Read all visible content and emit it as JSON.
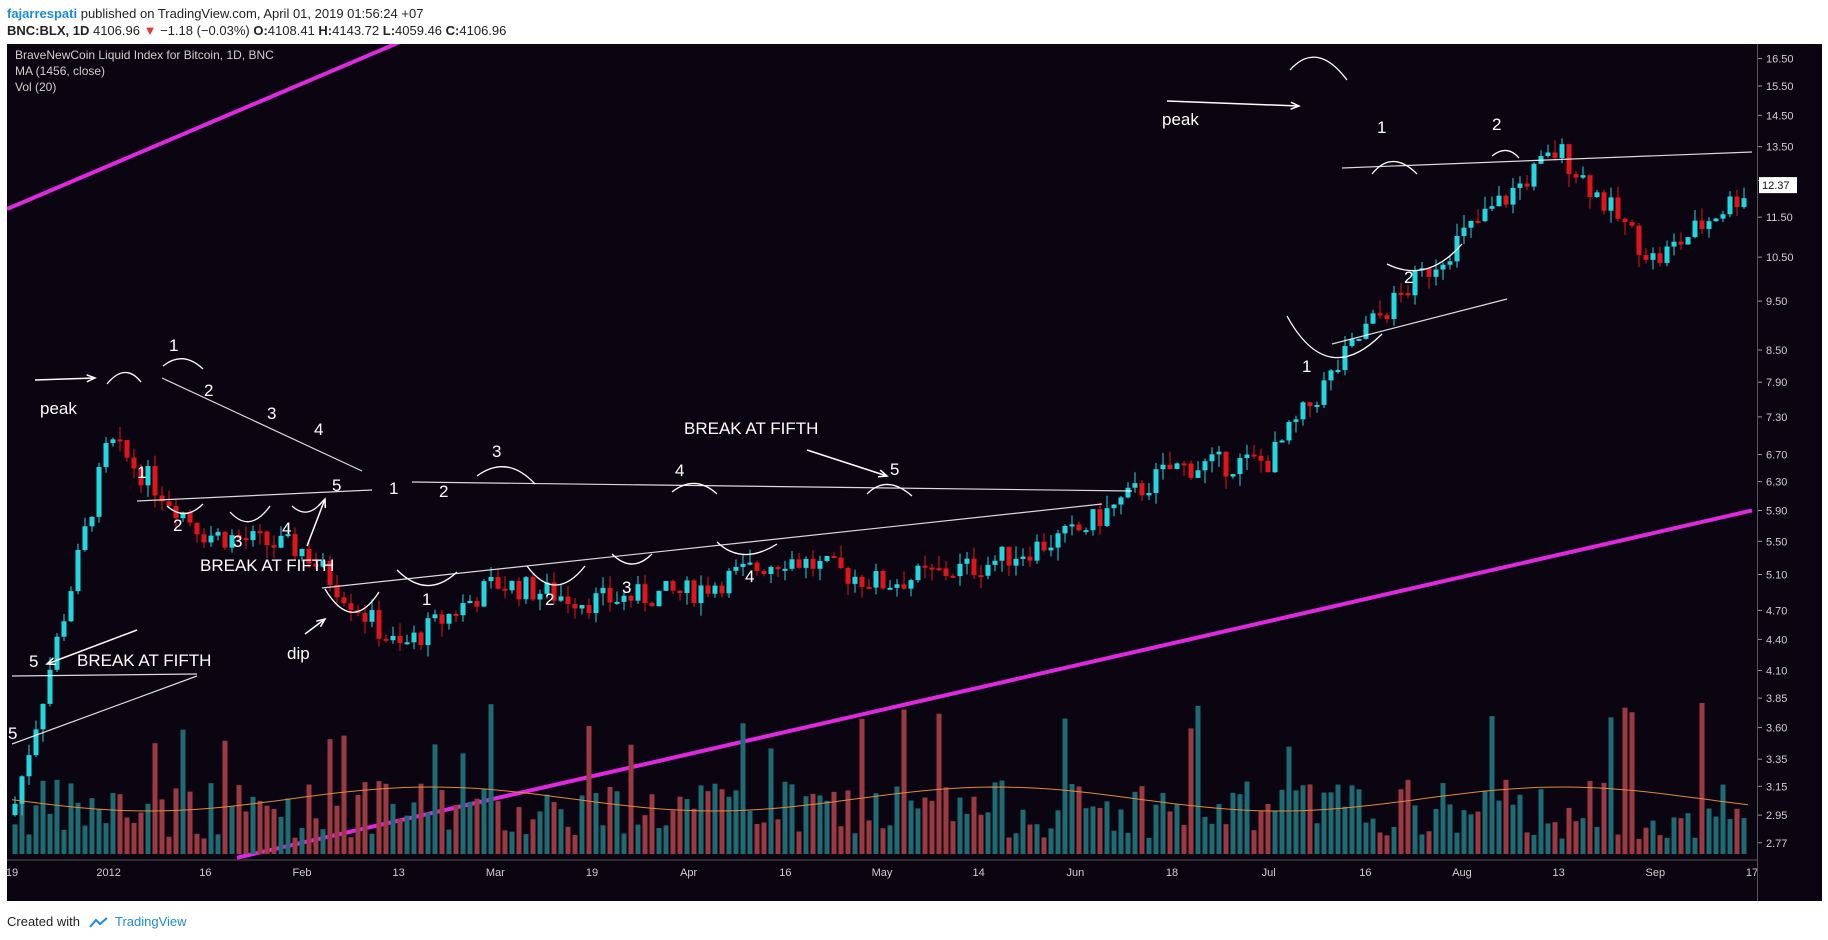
{
  "header": {
    "author": "fajarrespati",
    "published_text": "published on TradingView.com, April 01, 2019 01:56:24 +07",
    "symbol": "BNC:BLX, 1D",
    "last": "4106.96",
    "change": "−1.18 (−0.03%)",
    "o_label": "O:",
    "o_value": "4108.41",
    "h_label": "H:",
    "h_value": "4143.72",
    "l_label": "L:",
    "l_value": "4059.46",
    "c_label": "C:",
    "c_value": "4106.96"
  },
  "legend": {
    "title": "BraveNewCoin Liquid Index for Bitcoin, 1D, BNC",
    "ma": "MA (1456, close)",
    "vol": "Vol (20)"
  },
  "footer": {
    "created_with": "Created with",
    "brand": "TradingView"
  },
  "colors": {
    "background": "#0a0511",
    "up_candle": "#22d8e0",
    "down_candle": "#e0141b",
    "up_volume": "#1f6b74",
    "down_volume": "#9c3a44",
    "trendline": "#e028e0",
    "annotation": "#ffffff",
    "ma_line": "#e08a3c"
  },
  "chart_data": {
    "type": "candlestick",
    "y_scale": "log",
    "y_ticks": [
      "16.50",
      "15.50",
      "14.50",
      "13.50",
      "12.50",
      "11.50",
      "10.50",
      "9.50",
      "8.50",
      "7.90",
      "7.30",
      "6.70",
      "6.30",
      "5.90",
      "5.50",
      "5.10",
      "4.70",
      "4.40",
      "4.10",
      "3.85",
      "3.60",
      "3.35",
      "3.15",
      "2.95",
      "2.77"
    ],
    "x_ticks": [
      "19",
      "2012",
      "16",
      "Feb",
      "13",
      "Mar",
      "19",
      "Apr",
      "16",
      "May",
      "14",
      "Jun",
      "18",
      "Jul",
      "16",
      "Aug",
      "13",
      "Sep",
      "17"
    ],
    "last_price_label": "12.37",
    "ylim": [
      2.7,
      16.9
    ],
    "key_points": [
      {
        "x": "19",
        "y": 2.95
      },
      {
        "x": "2012",
        "y": 6.9
      },
      {
        "x": "16",
        "y": 5.6
      },
      {
        "x": "Feb",
        "y": 5.4
      },
      {
        "x": "13",
        "y": 4.3
      },
      {
        "x": "Mar",
        "y": 5.0
      },
      {
        "x": "19",
        "y": 4.8
      },
      {
        "x": "Apr",
        "y": 4.9
      },
      {
        "x": "16",
        "y": 5.3
      },
      {
        "x": "May",
        "y": 5.0
      },
      {
        "x": "14",
        "y": 5.2
      },
      {
        "x": "Jun",
        "y": 5.6
      },
      {
        "x": "18",
        "y": 6.5
      },
      {
        "x": "Jul",
        "y": 6.6
      },
      {
        "x": "16",
        "y": 8.9
      },
      {
        "x": "Aug",
        "y": 11.0
      },
      {
        "x": "13",
        "y": 13.4
      },
      {
        "x": "Sep",
        "y": 10.4
      },
      {
        "x": "17",
        "y": 12.37
      }
    ],
    "volume_labels": [
      "Vol (20)"
    ]
  },
  "annotations": [
    {
      "text": "peak"
    },
    {
      "text": "1"
    },
    {
      "text": "1"
    },
    {
      "text": "2"
    },
    {
      "text": "2"
    },
    {
      "text": "3"
    },
    {
      "text": "3"
    },
    {
      "text": "4"
    },
    {
      "text": "4"
    },
    {
      "text": "5"
    },
    {
      "text": "BREAK AT FIFTH"
    },
    {
      "text": "dip"
    },
    {
      "text": "5"
    },
    {
      "text": "BREAK AT FIFTH"
    },
    {
      "text": "5"
    },
    {
      "text": "1"
    },
    {
      "text": "1"
    },
    {
      "text": "2"
    },
    {
      "text": "2"
    },
    {
      "text": "3"
    },
    {
      "text": "3"
    },
    {
      "text": "4"
    },
    {
      "text": "4"
    },
    {
      "text": "BREAK AT FIFTH"
    },
    {
      "text": "5"
    },
    {
      "text": "peak"
    },
    {
      "text": "1"
    },
    {
      "text": "2"
    },
    {
      "text": "1"
    },
    {
      "text": "2"
    }
  ]
}
